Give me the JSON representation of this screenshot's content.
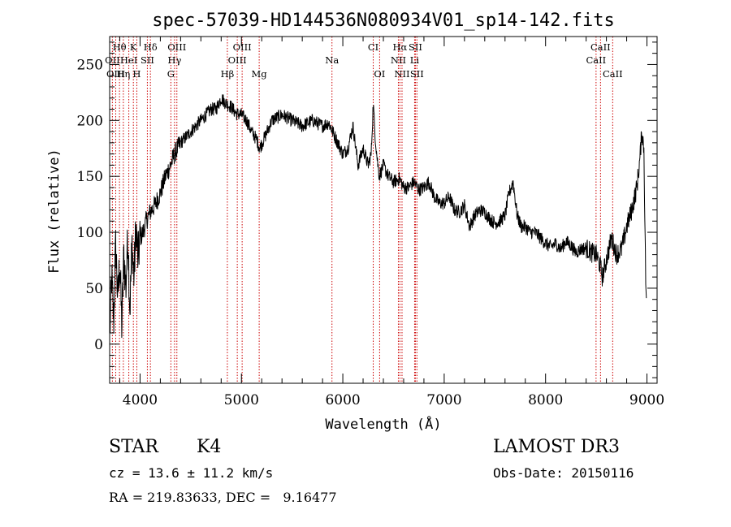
{
  "chart_data": {
    "type": "line",
    "title": "spec-57039-HD144536N080934V01_sp14-142.fits",
    "xlabel": "Wavelength (Å)",
    "ylabel": "Flux (relative)",
    "xlim": [
      3700,
      9100
    ],
    "ylim": [
      -35,
      275
    ],
    "x_ticks": [
      4000,
      5000,
      6000,
      7000,
      8000,
      9000
    ],
    "y_ticks": [
      0,
      50,
      100,
      150,
      200,
      250
    ],
    "series": [
      {
        "name": "spectrum",
        "x": [
          3700,
          3720,
          3740,
          3760,
          3780,
          3800,
          3820,
          3840,
          3860,
          3880,
          3900,
          3920,
          3940,
          3960,
          3980,
          4000,
          4030,
          4060,
          4100,
          4150,
          4200,
          4250,
          4300,
          4340,
          4400,
          4450,
          4500,
          4550,
          4600,
          4650,
          4700,
          4750,
          4800,
          4850,
          4900,
          4950,
          5000,
          5050,
          5100,
          5150,
          5180,
          5230,
          5300,
          5400,
          5500,
          5600,
          5700,
          5800,
          5860,
          5900,
          5950,
          6000,
          6050,
          6100,
          6150,
          6200,
          6250,
          6280,
          6300,
          6320,
          6340,
          6360,
          6400,
          6450,
          6500,
          6560,
          6600,
          6650,
          6700,
          6750,
          6800,
          6850,
          6900,
          6950,
          7000,
          7050,
          7100,
          7150,
          7200,
          7250,
          7300,
          7350,
          7400,
          7450,
          7500,
          7550,
          7600,
          7640,
          7680,
          7720,
          7760,
          7800,
          7850,
          7900,
          7950,
          8000,
          8050,
          8100,
          8150,
          8200,
          8250,
          8300,
          8350,
          8400,
          8450,
          8500,
          8540,
          8560,
          8600,
          8650,
          8700,
          8750,
          8800,
          8850,
          8900,
          8930,
          8950,
          8970,
          8990
        ],
        "y": [
          5,
          60,
          20,
          90,
          40,
          75,
          15,
          80,
          50,
          100,
          30,
          90,
          60,
          105,
          75,
          95,
          100,
          110,
          118,
          125,
          135,
          150,
          160,
          170,
          180,
          185,
          190,
          195,
          200,
          205,
          210,
          210,
          220,
          215,
          212,
          206,
          205,
          200,
          190,
          183,
          175,
          185,
          200,
          205,
          200,
          195,
          200,
          195,
          198,
          190,
          180,
          170,
          175,
          195,
          160,
          175,
          160,
          170,
          215,
          185,
          165,
          150,
          160,
          150,
          145,
          148,
          140,
          140,
          145,
          138,
          140,
          145,
          132,
          126,
          126,
          132,
          120,
          118,
          124,
          105,
          115,
          120,
          118,
          112,
          108,
          110,
          115,
          135,
          145,
          115,
          105,
          105,
          100,
          100,
          95,
          90,
          87,
          90,
          85,
          92,
          88,
          82,
          85,
          86,
          82,
          80,
          70,
          60,
          75,
          95,
          80,
          85,
          105,
          120,
          140,
          165,
          190,
          175,
          45
        ]
      }
    ],
    "spectral_lines": [
      {
        "name": "Hθ",
        "wave": 3797,
        "row": 1
      },
      {
        "name": "OII",
        "wave": 3727,
        "row": 2
      },
      {
        "name": "OIII",
        "wave": 3760,
        "row": 3
      },
      {
        "name": "K",
        "wave": 3934,
        "row": 1
      },
      {
        "name": "HeI",
        "wave": 3889,
        "row": 2
      },
      {
        "name": "Hη",
        "wave": 3835,
        "row": 3
      },
      {
        "name": "Hδ",
        "wave": 4102,
        "row": 1
      },
      {
        "name": "SII",
        "wave": 4072,
        "row": 2
      },
      {
        "name": "H",
        "wave": 3968,
        "row": 3
      },
      {
        "name": "OIII",
        "wave": 4363,
        "row": 1
      },
      {
        "name": "Hγ",
        "wave": 4340,
        "row": 2
      },
      {
        "name": "G",
        "wave": 4304,
        "row": 3
      },
      {
        "name": "OIII",
        "wave": 5007,
        "row": 1
      },
      {
        "name": "OIII",
        "wave": 4959,
        "row": 2
      },
      {
        "name": "Hβ",
        "wave": 4861,
        "row": 3
      },
      {
        "name": "Mg",
        "wave": 5175,
        "row": 3
      },
      {
        "name": "Na",
        "wave": 5893,
        "row": 2
      },
      {
        "name": "CI",
        "wave": 6300,
        "row": 1
      },
      {
        "name": "OI",
        "wave": 6363,
        "row": 3
      },
      {
        "name": "Hα",
        "wave": 6563,
        "row": 1
      },
      {
        "name": "NII",
        "wave": 6548,
        "row": 2
      },
      {
        "name": "NII",
        "wave": 6584,
        "row": 3
      },
      {
        "name": "SII",
        "wave": 6716,
        "row": 1
      },
      {
        "name": "Li",
        "wave": 6708,
        "row": 2
      },
      {
        "name": "SII",
        "wave": 6731,
        "row": 3
      },
      {
        "name": "CaII",
        "wave": 8542,
        "row": 1
      },
      {
        "name": "CaII",
        "wave": 8498,
        "row": 2
      },
      {
        "name": "CaII",
        "wave": 8662,
        "row": 3
      }
    ],
    "line_color": "#cc0000",
    "spectrum_color": "#000000"
  },
  "info": {
    "object_class": "STAR",
    "subclass": "K4",
    "cz": "cz = 13.6 ± 11.2 km/s",
    "radec": "RA = 219.83633, DEC =   9.16477",
    "survey": "LAMOST DR3",
    "obs_date": "Obs-Date: 20150116"
  }
}
